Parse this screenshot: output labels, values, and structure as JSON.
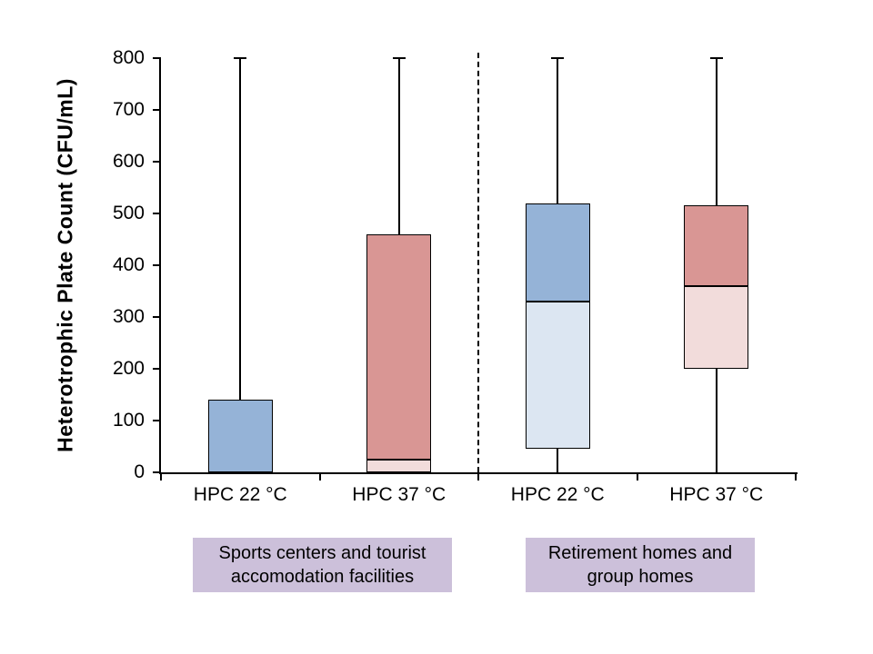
{
  "chart_data": {
    "type": "boxplot",
    "title": "",
    "xlabel": "",
    "ylabel": "Heterotrophic Plate Count (CFU/mL)",
    "y_axis": {
      "min": 0,
      "max": 800,
      "tick_step": 100,
      "ticks": [
        0,
        100,
        200,
        300,
        400,
        500,
        600,
        700,
        800
      ],
      "unit": "CFU/mL"
    },
    "grid": false,
    "legend": "none",
    "group_separator": {
      "style": "dashed-vertical-line",
      "position": "between group 1 and group 2"
    },
    "groups": [
      {
        "label": "Sports centers and tourist accomodation facilities",
        "categories": [
          "HPC 22 °C",
          "HPC 37 °C"
        ]
      },
      {
        "label": "Retirement homes and group homes",
        "categories": [
          "HPC 22 °C",
          "HPC 37 °C"
        ]
      }
    ],
    "boxes": [
      {
        "id": "sports-hpc22",
        "group": 0,
        "category": "HPC 22 °C",
        "min": 0,
        "q1": 0,
        "median": 0,
        "q3": 140,
        "max": 800,
        "fill_upper": "#95B3D7",
        "fill_lower": "#DCE6F2"
      },
      {
        "id": "sports-hpc37",
        "group": 0,
        "category": "HPC 37 °C",
        "min": 0,
        "q1": 0,
        "median": 25,
        "q3": 460,
        "max": 800,
        "fill_upper": "#D99694",
        "fill_lower": "#F2DCDB"
      },
      {
        "id": "retirement-hpc22",
        "group": 1,
        "category": "HPC 22 °C",
        "min": 0,
        "q1": 45,
        "median": 330,
        "q3": 520,
        "max": 800,
        "fill_upper": "#95B3D7",
        "fill_lower": "#DCE6F2"
      },
      {
        "id": "retirement-hpc37",
        "group": 1,
        "category": "HPC 37 °C",
        "min": 0,
        "q1": 200,
        "median": 360,
        "q3": 515,
        "max": 800,
        "fill_upper": "#D99694",
        "fill_lower": "#F2DCDB"
      }
    ],
    "colors": {
      "box_border": "#000000",
      "whisker": "#000000",
      "axis": "#000000",
      "blue_box": "#95B3D7",
      "light_blue_box": "#DCE6F2",
      "rose_box": "#D99694",
      "light_pink_box": "#F2DCDB",
      "group_label_bg": "#CCC0DA",
      "group_label_text": "#000000"
    }
  }
}
